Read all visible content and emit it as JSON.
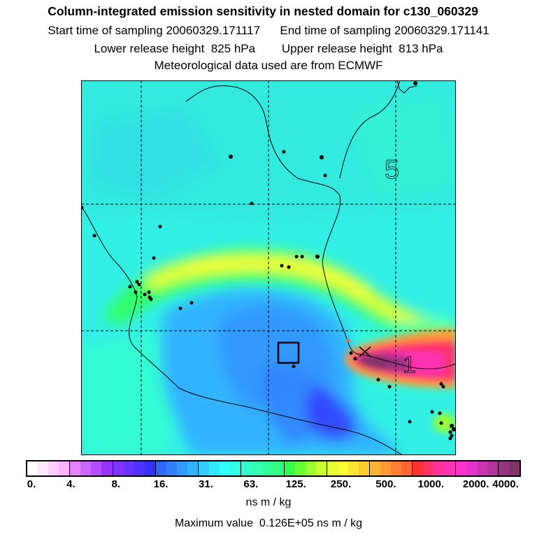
{
  "header": {
    "title": "Column-integrated emission sensitivity in nested domain for c130_060329",
    "start_label": "Start time of sampling",
    "start_value": "20060329.171117",
    "end_label": "End time of sampling",
    "end_value": "20060329.171141",
    "lower_label": "Lower release height",
    "lower_value": "825 hPa",
    "upper_label": "Upper release height",
    "upper_value": "813 hPa",
    "met_text": "Meteorological data used are from ECMWF"
  },
  "map": {
    "contour_labels": [
      "5",
      "1"
    ]
  },
  "colorbar": {
    "tick_labels": [
      "0.",
      "4.",
      "8.",
      "16.",
      "31.",
      "63.",
      "125.",
      "250.",
      "500.",
      "1000.",
      "2000.",
      "4000."
    ],
    "colors": [
      "#ffffff",
      "#ffe6ff",
      "#ffccff",
      "#ffb3ff",
      "#e680ff",
      "#cc66ff",
      "#b34dff",
      "#9933ff",
      "#8033ff",
      "#6633ff",
      "#4d33ff",
      "#3333ff",
      "#3366ff",
      "#3380ff",
      "#3399ff",
      "#33b3ff",
      "#33ccff",
      "#33e6ff",
      "#33ffff",
      "#33ffe6",
      "#33ffcc",
      "#33ffb3",
      "#33ff99",
      "#33ff80",
      "#33ff4d",
      "#66ff33",
      "#99ff33",
      "#ccff33",
      "#e6ff33",
      "#ffff33",
      "#ffe633",
      "#ffcc33",
      "#ffb333",
      "#ff9933",
      "#ff8033",
      "#ff6633",
      "#ff3333",
      "#ff3366",
      "#ff3399",
      "#ff33b3",
      "#ff33cc",
      "#e633cc",
      "#cc33b3",
      "#b3339f",
      "#993380",
      "#803366"
    ],
    "units": "ns m / kg",
    "max_label": "Maximum value",
    "max_value": "0.126E+05 ns m / kg"
  }
}
